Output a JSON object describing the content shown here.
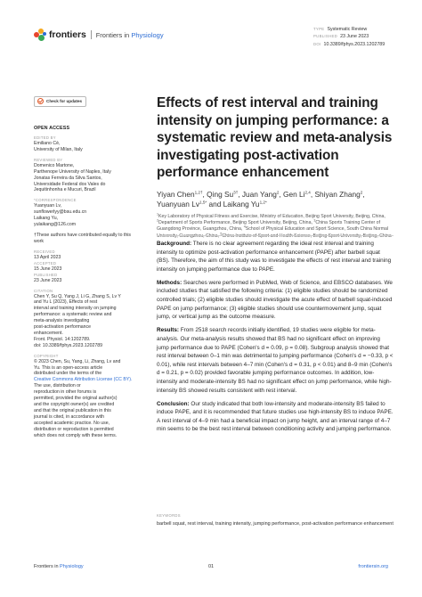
{
  "header": {
    "brand": "frontiers",
    "journal_prefix": "Frontiers in ",
    "journal_name": "Physiology",
    "meta": [
      {
        "key": "TYPE",
        "value": "Systematic Review"
      },
      {
        "key": "PUBLISHED",
        "value": "23 June 2023"
      },
      {
        "key": "DOI",
        "value": "10.3389/fphys.2023.1202789"
      }
    ],
    "logo_colors": [
      "#e8452c",
      "#f6a81c",
      "#3aa957",
      "#2d6dd4"
    ]
  },
  "sidebar": {
    "check_button": "Check for updates",
    "open_access": "OPEN ACCESS",
    "edited_by_label": "EDITED BY",
    "edited_by": [
      "Emiliano Cè,",
      "University of Milan, Italy"
    ],
    "reviewed_by_label": "REVIEWED BY",
    "reviewed_by": [
      "Domenico Martone,",
      "Parthenope University of Naples, Italy",
      "Jonatas Ferreira da Silva Santos,",
      "Universidade Federal dos Vales do",
      "Jequitinhonha e Mucuri, Brazil"
    ],
    "correspondence_label": "*CORRESPONDENCE",
    "correspondence": [
      "Yuanyuan Lv,",
      "sunflowerlyy@bsu.edu.cn",
      "Laikang Yu,",
      "yulaikang@126.com"
    ],
    "equal_note": "†These authors have contributed equally to this work",
    "received_label": "RECEIVED",
    "received": "13 April 2023",
    "accepted_label": "ACCEPTED",
    "accepted": "15 June 2023",
    "published_label": "PUBLISHED",
    "published": "23 June 2023",
    "citation_label": "CITATION",
    "citation": [
      "Chen Y, Su Q, Yang J, Li G, Zhang S, Lv Y",
      "and Yu L (2023), Effects of rest",
      "interval and training intensity on jumping",
      "performance: a systematic review and",
      "meta-analysis investigating",
      "post-activation performance",
      "enhancement.",
      "Front. Physiol. 14:1202789.",
      "doi: 10.3389/fphys.2023.1202789"
    ],
    "copyright_label": "COPYRIGHT",
    "copyright_pre": [
      "© 2023 Chen, Su, Yang, Li, Zhang, Lv and",
      "Yu. This is an open-access article",
      "distributed under the terms of the"
    ],
    "copyright_link": "Creative Commons Attribution License (CC BY).",
    "copyright_post": [
      "The use, distribution or",
      "reproduction in other forums is",
      "permitted, provided the original author(s)",
      "and the copyright owner(s) are credited",
      "and that the original publication in this",
      "journal is cited, in accordance with",
      "accepted academic practice. No use,",
      "distribution or reproduction is permitted",
      "which does not comply with these terms."
    ]
  },
  "article": {
    "title": "Effects of rest interval and training intensity on jumping performance: a systematic review and meta-analysis investigating post-activation performance enhancement",
    "authors": [
      {
        "name": "Yiyan Chen",
        "sup": "1,2†",
        "sep": ", "
      },
      {
        "name": "Qing Su",
        "sup": "3†",
        "sep": ", "
      },
      {
        "name": "Juan Yang",
        "sup": "2",
        "sep": ", "
      },
      {
        "name": "Gen Li",
        "sup": "2,4",
        "sep": ", "
      },
      {
        "name": "Shiyan Zhang",
        "sup": "2",
        "sep": ", "
      },
      {
        "name": "Yuanyuan Lv",
        "sup": "1,5*",
        "sep": " and "
      },
      {
        "name": "Laikang Yu",
        "sup": "1,2*",
        "sep": ""
      }
    ],
    "affiliations": [
      {
        "n": "1",
        "text": "Key Laboratory of Physical Fitness and Exercise, Ministry of Education, Beijing Sport University, Beijing, China, "
      },
      {
        "n": "2",
        "text": "Department of Sports Performance, Beijing Sport University, Beijing, China, "
      },
      {
        "n": "3",
        "text": "China Sports Training Center of Guangdong Province, Guangzhou, China, "
      },
      {
        "n": "4",
        "text": "School of Physical Education and Sport Science, South China Normal University, Guangzhou, China, "
      },
      {
        "n": "5",
        "text": "China Institute of Sport and Health Science, Beijing Sport University, Beijing, China"
      }
    ],
    "abstract": [
      {
        "label": "Background:",
        "text": " There is no clear agreement regarding the ideal rest interval and training intensity to optimize post-activation performance enhancement (PAPE) after barbell squat (BS). Therefore, the aim of this study was to investigate the effects of rest interval and training intensity on jumping performance due to PAPE."
      },
      {
        "label": "Methods:",
        "text": " Searches were performed in PubMed, Web of Science, and EBSCO databases. We included studies that satisfied the following criteria: (1) eligible studies should be randomized controlled trials; (2) eligible studies should investigate the acute effect of barbell squat-induced PAPE on jump performance; (3) eligible studies should use countermovement jump, squat jump, or vertical jump as the outcome measure."
      },
      {
        "label": "Results:",
        "text": " From 2518 search records initially identified, 19 studies were eligible for meta-analysis. Our meta-analysis results showed that BS had no significant effect on improving jump performance due to PAPE (Cohen's d = 0.09, p = 0.08). Subgroup analysis showed that rest interval between 0–1 min was detrimental to jumping performance (Cohen's d = −0.33, p < 0.01), while rest intervals between 4–7 min (Cohen's d = 0.31, p < 0.01) and 8–9 min (Cohen's d = 0.21, p = 0.02) provided favorable jumping performance outcomes. In addition, low-intensity and moderate-intensity BS had no significant effect on jump performance, while high-intensity BS showed results consistent with rest interval."
      },
      {
        "label": "Conclusion:",
        "text": " Our study indicated that both low-intensity and moderate-intensity BS failed to induce PAPE, and it is recommended that future studies use high-intensity BS to induce PAPE. A rest interval of 4–9 min had a beneficial impact on jump height, and an interval range of 4–7 min seems to be the best rest interval between conditioning activity and jumping performance."
      }
    ],
    "keywords_label": "KEYWORDS",
    "keywords": "barbell squat, rest interval, training intensity, jumping performance, post-activation performance enhancement"
  },
  "footer": {
    "journal_prefix": "Frontiers in ",
    "journal_name": "Physiology",
    "page": "01",
    "site": "frontiersin.org"
  }
}
